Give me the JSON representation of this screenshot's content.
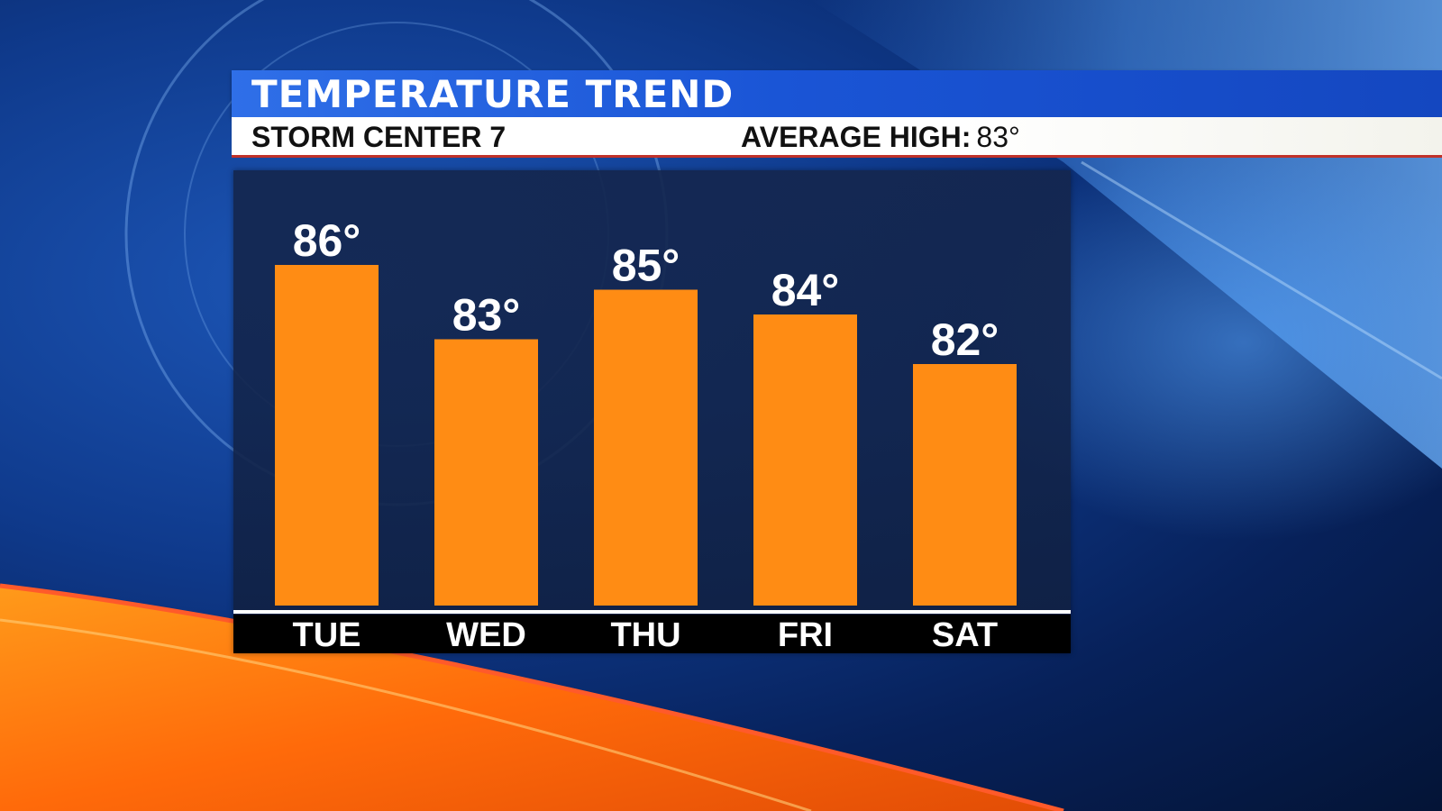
{
  "header": {
    "title": "TEMPERATURE TREND",
    "station": "STORM CENTER 7",
    "average_high_label": "AVERAGE HIGH:",
    "average_high_value": "83°"
  },
  "colors": {
    "bar": "#ff8c14",
    "title_bar": "#1a55d6",
    "subtitle_accent": "#c0322a",
    "day_strip": "#000000",
    "baseline": "#ffffff"
  },
  "chart_data": {
    "type": "bar",
    "title": "TEMPERATURE TREND",
    "categories": [
      "TUE",
      "WED",
      "THU",
      "FRI",
      "SAT"
    ],
    "values": [
      86,
      83,
      85,
      84,
      82
    ],
    "data_labels": [
      "86°",
      "83°",
      "85°",
      "84°",
      "82°"
    ],
    "xlabel": "",
    "ylabel": "",
    "grid": false,
    "legend": "none"
  }
}
